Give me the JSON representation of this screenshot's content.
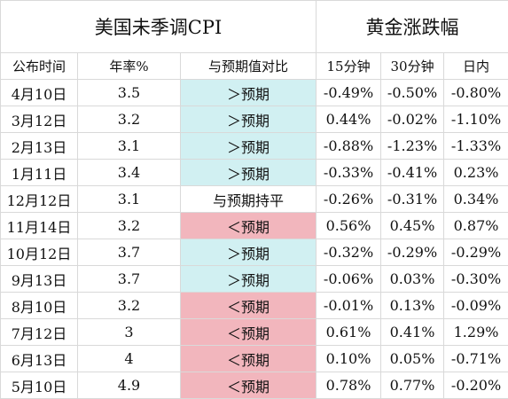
{
  "header": {
    "group_left": "美国未季调CPI",
    "group_right": "黄金涨跌幅"
  },
  "columns": [
    "公布时间",
    "年率%",
    "与预期值对比",
    "15分钟",
    "30分钟",
    "日内"
  ],
  "colors": {
    "above_expectation": "#d1f0f2",
    "below_expectation": "#f2b6bd",
    "in_line": "#ffffff",
    "grid": "#d9d9d9"
  },
  "rows": [
    {
      "date": "4月10日",
      "rate": "3.5",
      "vs": "＞预期",
      "kind": "above",
      "m15": "-0.49%",
      "m30": "-0.50%",
      "day": "-0.80%"
    },
    {
      "date": "3月12日",
      "rate": "3.2",
      "vs": "＞预期",
      "kind": "above",
      "m15": "0.44%",
      "m30": "-0.02%",
      "day": "-1.10%"
    },
    {
      "date": "2月13日",
      "rate": "3.1",
      "vs": "＞预期",
      "kind": "above",
      "m15": "-0.88%",
      "m30": "-1.23%",
      "day": "-1.33%"
    },
    {
      "date": "1月11日",
      "rate": "3.4",
      "vs": "＞预期",
      "kind": "above",
      "m15": "-0.33%",
      "m30": "-0.41%",
      "day": "0.23%"
    },
    {
      "date": "12月12日",
      "rate": "3.1",
      "vs": "与预期持平",
      "kind": "equal",
      "m15": "-0.26%",
      "m30": "-0.31%",
      "day": "0.34%"
    },
    {
      "date": "11月14日",
      "rate": "3.2",
      "vs": "＜预期",
      "kind": "below",
      "m15": "0.56%",
      "m30": "0.45%",
      "day": "0.87%"
    },
    {
      "date": "10月12日",
      "rate": "3.7",
      "vs": "＞预期",
      "kind": "above",
      "m15": "-0.32%",
      "m30": "-0.29%",
      "day": "-0.29%"
    },
    {
      "date": "9月13日",
      "rate": "3.7",
      "vs": "＞预期",
      "kind": "above",
      "m15": "-0.06%",
      "m30": "0.03%",
      "day": "-0.30%"
    },
    {
      "date": "8月10日",
      "rate": "3.2",
      "vs": "＜预期",
      "kind": "below",
      "m15": "-0.01%",
      "m30": "0.13%",
      "day": "-0.09%"
    },
    {
      "date": "7月12日",
      "rate": "3",
      "vs": "＜预期",
      "kind": "below",
      "m15": "0.61%",
      "m30": "0.41%",
      "day": "1.29%"
    },
    {
      "date": "6月13日",
      "rate": "4",
      "vs": "＜预期",
      "kind": "below",
      "m15": "0.10%",
      "m30": "0.05%",
      "day": "-0.71%"
    },
    {
      "date": "5月10日",
      "rate": "4.9",
      "vs": "＜预期",
      "kind": "below",
      "m15": "0.78%",
      "m30": "0.77%",
      "day": "-0.20%"
    }
  ]
}
